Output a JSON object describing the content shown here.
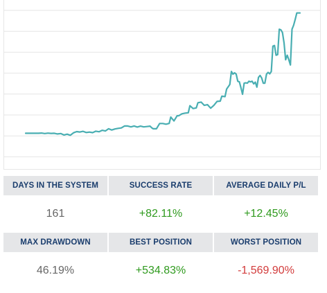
{
  "chart_data": {
    "type": "line",
    "color": "#49aeb2",
    "y_gridlines": 8,
    "points": [
      [
        0,
        20.0
      ],
      [
        4,
        20.0
      ],
      [
        8,
        20.0
      ],
      [
        10,
        20.2
      ],
      [
        12,
        19.8
      ],
      [
        14,
        20.1
      ],
      [
        16,
        19.9
      ],
      [
        18,
        20.0
      ],
      [
        20,
        19.5
      ],
      [
        22,
        19.8
      ],
      [
        24,
        18.7
      ],
      [
        26,
        19.3
      ],
      [
        28,
        18.5
      ],
      [
        30,
        20.4
      ],
      [
        32,
        21.3
      ],
      [
        34,
        21.0
      ],
      [
        36,
        21.5
      ],
      [
        38,
        20.6
      ],
      [
        40,
        20.9
      ],
      [
        42,
        20.5
      ],
      [
        44,
        21.6
      ],
      [
        46,
        21.2
      ],
      [
        48,
        22.3
      ],
      [
        50,
        21.8
      ],
      [
        52,
        23.5
      ],
      [
        54,
        22.5
      ],
      [
        56,
        23.3
      ],
      [
        58,
        23.8
      ],
      [
        60,
        24.1
      ],
      [
        62,
        25.6
      ],
      [
        64,
        25.6
      ],
      [
        66,
        24.9
      ],
      [
        68,
        25.6
      ],
      [
        70,
        24.8
      ],
      [
        72,
        25.5
      ],
      [
        74,
        24.9
      ],
      [
        76,
        25.2
      ],
      [
        78,
        25.5
      ],
      [
        79,
        24.3
      ],
      [
        80,
        23.5
      ],
      [
        82,
        23.5
      ],
      [
        84,
        27.5
      ],
      [
        86,
        27.5
      ],
      [
        88,
        27.0
      ],
      [
        90,
        27.6
      ],
      [
        91,
        32.5
      ],
      [
        93,
        29.5
      ],
      [
        95,
        33.5
      ],
      [
        96,
        33.5
      ],
      [
        98,
        35.0
      ],
      [
        100,
        35.5
      ],
      [
        102,
        35.8
      ],
      [
        103,
        41.2
      ],
      [
        105,
        39.0
      ],
      [
        107,
        39.5
      ],
      [
        108,
        43.5
      ],
      [
        110,
        44.0
      ],
      [
        112,
        41.5
      ],
      [
        114,
        42.0
      ],
      [
        116,
        39.3
      ],
      [
        118,
        41.5
      ],
      [
        120,
        44.5
      ],
      [
        122,
        44.7
      ],
      [
        123,
        48.5
      ],
      [
        125,
        48.2
      ],
      [
        126,
        54.0
      ],
      [
        128,
        57.5
      ],
      [
        129,
        67.5
      ],
      [
        130,
        65.5
      ],
      [
        131,
        66.5
      ],
      [
        132,
        65.5
      ],
      [
        133,
        60.0
      ],
      [
        134,
        59.5
      ],
      [
        135,
        55.0
      ],
      [
        136,
        50.0
      ],
      [
        137,
        58.5
      ],
      [
        138,
        58.8
      ],
      [
        139,
        58.5
      ],
      [
        140,
        60.0
      ],
      [
        141,
        59.5
      ],
      [
        142,
        60.0
      ],
      [
        143,
        58.0
      ],
      [
        144,
        59.3
      ],
      [
        145,
        55.5
      ],
      [
        146,
        63.0
      ],
      [
        147,
        64.5
      ],
      [
        148,
        62.5
      ],
      [
        149,
        58.5
      ],
      [
        150,
        58.5
      ],
      [
        151,
        65.5
      ],
      [
        152,
        66.8
      ],
      [
        153,
        65.7
      ],
      [
        154,
        67.5
      ],
      [
        155,
        87.0
      ],
      [
        156,
        87.5
      ],
      [
        157,
        80.0
      ],
      [
        158,
        80.5
      ],
      [
        159,
        100.0
      ],
      [
        160,
        99.5
      ],
      [
        161,
        97.5
      ],
      [
        162,
        89.5
      ],
      [
        163,
        76.5
      ],
      [
        164,
        80.0
      ],
      [
        165,
        76.5
      ],
      [
        166,
        72.5
      ],
      [
        167,
        100.0
      ],
      [
        168,
        103.0
      ],
      [
        169,
        107.5
      ],
      [
        170,
        112.5
      ],
      [
        171,
        112.5
      ],
      [
        172,
        112.5
      ]
    ],
    "x_range": [
      0,
      172
    ],
    "y_range": [
      0,
      115
    ]
  },
  "stats": {
    "days_in_system": {
      "label": "DAYS IN THE SYSTEM",
      "value": "161"
    },
    "success_rate": {
      "label": "SUCCESS RATE",
      "value": "+82.11%"
    },
    "average_daily_pl": {
      "label": "AVERAGE DAILY P/L",
      "value": "+12.45%"
    },
    "max_drawdown": {
      "label": "MAX DRAWDOWN",
      "value": "46.19%"
    },
    "best_position": {
      "label": "BEST POSITION",
      "value": "+534.83%"
    },
    "worst_position": {
      "label": "WORST POSITION",
      "value": "-1,569.90%"
    }
  },
  "colors": {
    "header_text": "#1a3d6d",
    "header_bg": "#e5e6e8",
    "positive": "#2f9a1e",
    "negative": "#d23b3b",
    "neutral": "#666666"
  }
}
